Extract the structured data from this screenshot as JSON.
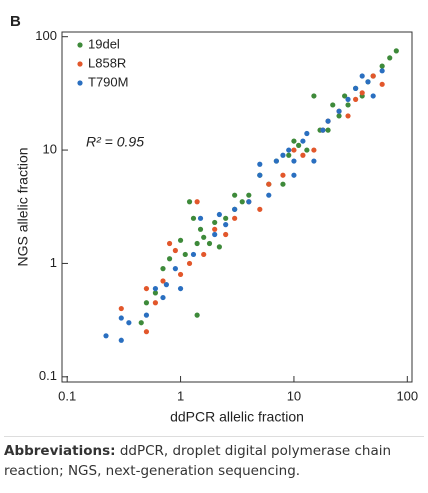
{
  "chart_data": {
    "type": "scatter",
    "panel_label": "B",
    "x_label": "ddPCR allelic fraction",
    "y_label": "NGS allelic fraction",
    "annotation": "R² = 0.95",
    "log_x": true,
    "log_y": true,
    "xlim": [
      0.09,
      110
    ],
    "ylim": [
      0.09,
      110
    ],
    "xticks": [
      0.1,
      1,
      10,
      100
    ],
    "yticks": [
      0.1,
      1,
      10,
      100
    ],
    "legend": "top-left",
    "series": [
      {
        "name": "19del",
        "color": "#3e8a3a",
        "x": [
          0.45,
          0.5,
          0.6,
          0.7,
          0.8,
          1.0,
          1.1,
          1.3,
          1.4,
          1.5,
          1.6,
          1.8,
          2,
          2.5,
          3,
          3.5,
          4,
          5,
          6,
          7,
          9,
          10,
          11,
          13,
          15,
          17,
          20,
          22,
          25,
          28,
          30,
          35,
          40,
          45,
          50,
          60,
          70,
          80,
          2.2,
          1.4,
          1.2,
          3,
          8
        ],
        "values": [
          0.3,
          0.45,
          0.55,
          0.9,
          1.1,
          1.6,
          1.2,
          2.5,
          1.5,
          2.0,
          1.7,
          1.5,
          2.3,
          2.5,
          3,
          3.5,
          4,
          6,
          5,
          8,
          9,
          12,
          11,
          10,
          30,
          15,
          15,
          25,
          20,
          30,
          25,
          35,
          30,
          40,
          45,
          55,
          65,
          75,
          1.4,
          0.35,
          3.5,
          4,
          5
        ]
      },
      {
        "name": "L858R",
        "color": "#e2572b",
        "x": [
          0.3,
          0.5,
          0.5,
          0.6,
          0.7,
          0.8,
          0.9,
          1.0,
          1.2,
          1.4,
          1.6,
          2,
          2.5,
          3,
          4,
          5,
          6,
          8,
          10,
          12,
          15,
          18,
          20,
          25,
          30,
          35,
          40,
          50,
          60
        ],
        "values": [
          0.4,
          0.25,
          0.6,
          0.45,
          0.7,
          1.5,
          1.3,
          0.8,
          1.0,
          3.5,
          1.2,
          2,
          1.8,
          2.5,
          3.5,
          3,
          5,
          6,
          10,
          9,
          10,
          15,
          18,
          22,
          20,
          28,
          32,
          45,
          38
        ]
      },
      {
        "name": "T790M",
        "color": "#2a6fc0",
        "x": [
          0.22,
          0.3,
          0.3,
          0.35,
          0.5,
          0.6,
          0.7,
          0.75,
          0.9,
          1.0,
          1.3,
          1.5,
          2,
          2.2,
          2.5,
          3,
          4,
          5,
          5,
          6,
          7,
          8,
          9,
          10,
          12,
          13,
          15,
          18,
          20,
          25,
          30,
          35,
          40,
          45,
          50,
          60,
          10
        ],
        "values": [
          0.23,
          0.21,
          0.33,
          0.3,
          0.35,
          0.6,
          0.5,
          0.65,
          0.9,
          0.6,
          1.2,
          2.5,
          1.8,
          2.7,
          2.2,
          3,
          3.5,
          6,
          7.5,
          4,
          8,
          9,
          10,
          8,
          12,
          14,
          8,
          15,
          18,
          22,
          28,
          35,
          45,
          40,
          30,
          50,
          6
        ]
      }
    ]
  },
  "caption": {
    "label": "Abbreviations:",
    "text": " ddPCR, droplet digital polymerase chain reaction; NGS, next-generation sequencing."
  }
}
